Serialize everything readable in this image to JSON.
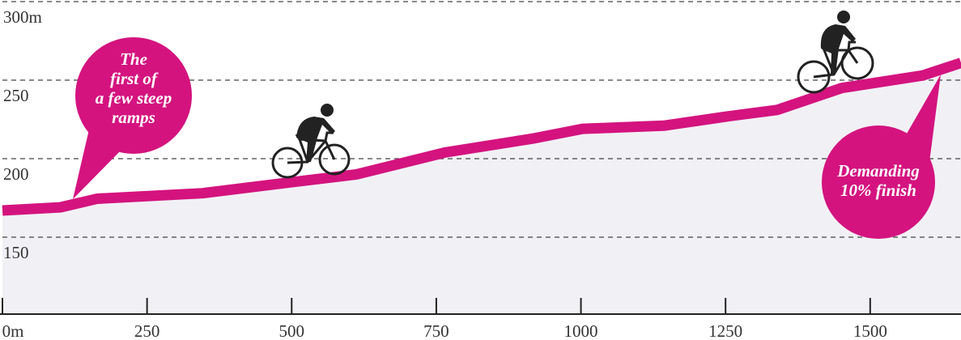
{
  "chart_data": {
    "type": "area",
    "x": [
      0,
      100,
      164,
      346,
      500,
      612,
      766,
      920,
      1003,
      1143,
      1255,
      1339,
      1451,
      1591,
      1657
    ],
    "series": [
      {
        "color": "#d4137f",
        "values": [
          167,
          169,
          174.5,
          178,
          185,
          190,
          204,
          213,
          219,
          221,
          227,
          231,
          245,
          253,
          261
        ]
      }
    ],
    "fill": "#f1f1f5",
    "xlim": [
      0,
      1657
    ],
    "xticks": [
      {
        "value": 0,
        "label": "0m"
      },
      250,
      500,
      750,
      1000,
      1250,
      1500
    ],
    "ylim": [
      100,
      300
    ],
    "yticks": [
      150,
      200,
      250,
      {
        "value": 300,
        "label": "300m"
      }
    ],
    "grid": true,
    "annotations": [
      {
        "lines": [
          "The",
          "first of",
          "a few steep",
          "ramps"
        ]
      },
      {
        "lines": [
          "Demanding",
          "10% finish"
        ]
      }
    ]
  }
}
